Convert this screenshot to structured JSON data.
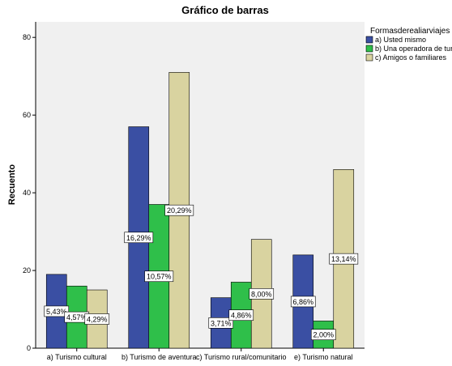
{
  "chart_data": {
    "type": "bar",
    "title": "Gráfico de barras",
    "ylabel": "Recuento",
    "xlabel": "",
    "ylim": [
      0,
      80
    ],
    "yticks": [
      0,
      20,
      40,
      60,
      80
    ],
    "grid": false,
    "legend_position": "right",
    "legend_title": "Formasderealiarviajes",
    "categories": [
      "a) Turismo cultural",
      "b) Turismo de aventura",
      "c) Turismo rural/comunitario",
      "e) Turismo natural"
    ],
    "series": [
      {
        "name": "a) Usted mismo",
        "color": "#3a4fa3",
        "values": [
          19,
          57,
          13,
          24
        ],
        "labels": [
          "5,43%",
          "16,29%",
          "3,71%",
          "6,86%"
        ]
      },
      {
        "name": "b) Una operadora de turismo",
        "color": "#2fbf4a",
        "values": [
          16,
          37,
          17,
          7
        ],
        "labels": [
          "4,57%",
          "10,57%",
          "4,86%",
          "2,00%"
        ]
      },
      {
        "name": "c) Amigos o familiares",
        "color": "#d9d3a0",
        "values": [
          15,
          71,
          28,
          46
        ],
        "labels": [
          "4,29%",
          "20,29%",
          "8,00%",
          "13,14%"
        ]
      }
    ]
  }
}
